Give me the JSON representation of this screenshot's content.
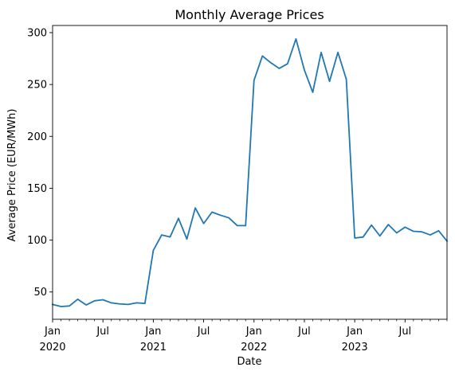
{
  "chart_data": {
    "type": "line",
    "title": "Monthly Average Prices",
    "xlabel": "Date",
    "ylabel": "Average Price (EUR/MWh)",
    "x": [
      "2020-01",
      "2020-02",
      "2020-03",
      "2020-04",
      "2020-05",
      "2020-06",
      "2020-07",
      "2020-08",
      "2020-09",
      "2020-10",
      "2020-11",
      "2020-12",
      "2021-01",
      "2021-02",
      "2021-03",
      "2021-04",
      "2021-05",
      "2021-06",
      "2021-07",
      "2021-08",
      "2021-09",
      "2021-10",
      "2021-11",
      "2021-12",
      "2022-01",
      "2022-02",
      "2022-03",
      "2022-04",
      "2022-05",
      "2022-06",
      "2022-07",
      "2022-08",
      "2022-09",
      "2022-10",
      "2022-11",
      "2022-12",
      "2023-01",
      "2023-02",
      "2023-03",
      "2023-04",
      "2023-05",
      "2023-06",
      "2023-07",
      "2023-08",
      "2023-09",
      "2023-10",
      "2023-11",
      "2023-12"
    ],
    "series": [
      {
        "color": "#1f77b4",
        "values": [
          38,
          36,
          36.5,
          43,
          37.5,
          41.5,
          42.5,
          39.5,
          38.5,
          38,
          39.5,
          39,
          90,
          105,
          103,
          121,
          101,
          131,
          116,
          127,
          124,
          121.5,
          114,
          114,
          254,
          277.5,
          271,
          265.5,
          270,
          294,
          264,
          242.5,
          281,
          253,
          281,
          255,
          102,
          103,
          114.5,
          104,
          115,
          107,
          112.5,
          108.5,
          108,
          105,
          109,
          99
        ]
      }
    ],
    "ylim": [
      23.7,
      306.9
    ],
    "yticks": [
      50,
      100,
      150,
      200,
      250,
      300
    ],
    "xticks": [
      {
        "month": "2020-01",
        "label": "Jan",
        "sublabel": "2020"
      },
      {
        "month": "2020-07",
        "label": "Jul",
        "sublabel": ""
      },
      {
        "month": "2021-01",
        "label": "Jan",
        "sublabel": "2021"
      },
      {
        "month": "2021-07",
        "label": "Jul",
        "sublabel": ""
      },
      {
        "month": "2022-01",
        "label": "Jan",
        "sublabel": "2022"
      },
      {
        "month": "2022-07",
        "label": "Jul",
        "sublabel": ""
      },
      {
        "month": "2023-01",
        "label": "Jan",
        "sublabel": "2023"
      },
      {
        "month": "2023-07",
        "label": "Jul",
        "sublabel": ""
      }
    ],
    "grid": false,
    "legend": "none"
  }
}
